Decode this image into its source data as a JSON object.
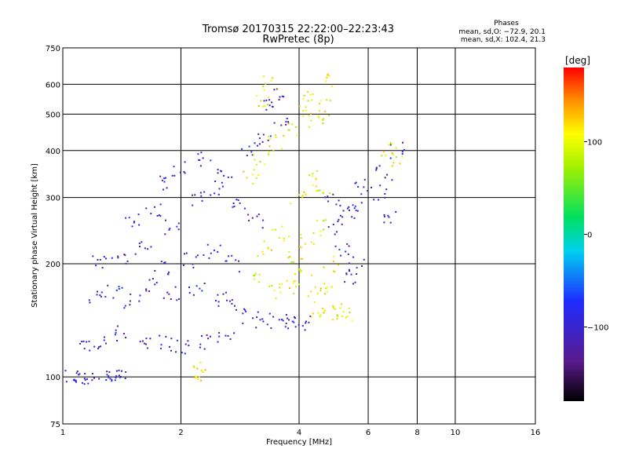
{
  "chart_data": {
    "type": "scatter",
    "title": "Tromsø 20170315 22:22:00–22:23:43",
    "subtitle": "RwPretec (8p)",
    "xlabel": "Frequency [MHz]",
    "ylabel": "Stationary phase Virtual Height [km]",
    "x_scale": "log",
    "y_scale": "log",
    "xlim": [
      1,
      16
    ],
    "ylim": [
      75,
      750
    ],
    "x_ticks": [
      1,
      2,
      4,
      6,
      8,
      10,
      16
    ],
    "x_tick_labels": [
      "1",
      "2",
      "4",
      "6",
      "8",
      "10",
      "16"
    ],
    "y_ticks": [
      75,
      100,
      200,
      300,
      400,
      500,
      600,
      750
    ],
    "y_tick_labels": [
      "75",
      "100",
      "200",
      "300",
      "400",
      "500",
      "600",
      "750"
    ],
    "grid": true,
    "stats": {
      "heading": "Phases",
      "line_o": "mean, sd,O: −72.9, 20.1",
      "line_x": "mean, sd,X: 102.4, 21.3"
    },
    "colorbar": {
      "unit": "[deg]",
      "range": [
        -180,
        180
      ],
      "ticks": [
        100,
        0,
        -100
      ],
      "tick_labels": [
        "100",
        "0",
        "−100"
      ],
      "colormap": "rainbow (black → purple → blue → cyan → green → yellow → red)"
    },
    "series": [
      {
        "mode": "O",
        "phase_deg": -100,
        "description": "blue/cyan echo population",
        "points": [
          [
            1.05,
            100
          ],
          [
            1.1,
            99
          ],
          [
            1.15,
            100
          ],
          [
            1.3,
            101
          ],
          [
            1.35,
            99
          ],
          [
            1.4,
            100
          ],
          [
            1.15,
            122
          ],
          [
            1.25,
            125
          ],
          [
            1.4,
            130
          ],
          [
            1.6,
            125
          ],
          [
            1.8,
            123
          ],
          [
            2.0,
            121
          ],
          [
            2.3,
            124
          ],
          [
            2.6,
            127
          ],
          [
            1.2,
            165
          ],
          [
            1.35,
            170
          ],
          [
            1.5,
            160
          ],
          [
            1.7,
            175
          ],
          [
            1.9,
            168
          ],
          [
            2.2,
            172
          ],
          [
            2.5,
            160
          ],
          [
            2.8,
            155
          ],
          [
            1.25,
            200
          ],
          [
            1.4,
            210
          ],
          [
            1.6,
            220
          ],
          [
            1.8,
            195
          ],
          [
            2.1,
            205
          ],
          [
            2.4,
            215
          ],
          [
            2.7,
            200
          ],
          [
            1.5,
            260
          ],
          [
            1.7,
            280
          ],
          [
            1.9,
            250
          ],
          [
            2.2,
            300
          ],
          [
            2.5,
            320
          ],
          [
            2.8,
            290
          ],
          [
            3.1,
            260
          ],
          [
            1.8,
            330
          ],
          [
            2.0,
            360
          ],
          [
            2.3,
            380
          ],
          [
            2.6,
            350
          ],
          [
            3.0,
            400
          ],
          [
            3.3,
            430
          ],
          [
            3.0,
            142
          ],
          [
            3.3,
            141
          ],
          [
            3.6,
            140
          ],
          [
            3.9,
            141
          ],
          [
            4.1,
            140
          ],
          [
            3.4,
            520
          ],
          [
            3.6,
            480
          ],
          [
            3.5,
            560
          ],
          [
            5.0,
            250
          ],
          [
            5.3,
            270
          ],
          [
            5.6,
            280
          ],
          [
            5.4,
            180
          ],
          [
            5.6,
            200
          ],
          [
            5.2,
            220
          ],
          [
            4.9,
            300
          ],
          [
            5.7,
            320
          ],
          [
            6.4,
            310
          ],
          [
            6.6,
            350
          ],
          [
            6.8,
            270
          ],
          [
            7.1,
            400
          ]
        ]
      },
      {
        "mode": "X",
        "phase_deg": 102,
        "description": "yellow/orange echo population",
        "points": [
          [
            2.2,
            102
          ],
          [
            2.25,
            104
          ],
          [
            3.2,
            180
          ],
          [
            3.5,
            170
          ],
          [
            3.8,
            175
          ],
          [
            4.1,
            185
          ],
          [
            4.4,
            165
          ],
          [
            4.7,
            170
          ],
          [
            3.3,
            220
          ],
          [
            3.6,
            240
          ],
          [
            3.9,
            210
          ],
          [
            4.2,
            230
          ],
          [
            4.5,
            250
          ],
          [
            4.8,
            200
          ],
          [
            3.0,
            340
          ],
          [
            3.2,
            380
          ],
          [
            3.5,
            420
          ],
          [
            3.8,
            460
          ],
          [
            4.1,
            500
          ],
          [
            4.4,
            480
          ],
          [
            3.2,
            550
          ],
          [
            3.4,
            600
          ],
          [
            4.3,
            560
          ],
          [
            4.6,
            520
          ],
          [
            4.7,
            610
          ],
          [
            4.5,
            150
          ],
          [
            4.7,
            148
          ],
          [
            5.0,
            152
          ],
          [
            5.2,
            145
          ],
          [
            6.8,
            400
          ],
          [
            7.2,
            380
          ],
          [
            4.0,
            300
          ],
          [
            4.3,
            340
          ],
          [
            4.6,
            320
          ]
        ]
      }
    ]
  }
}
